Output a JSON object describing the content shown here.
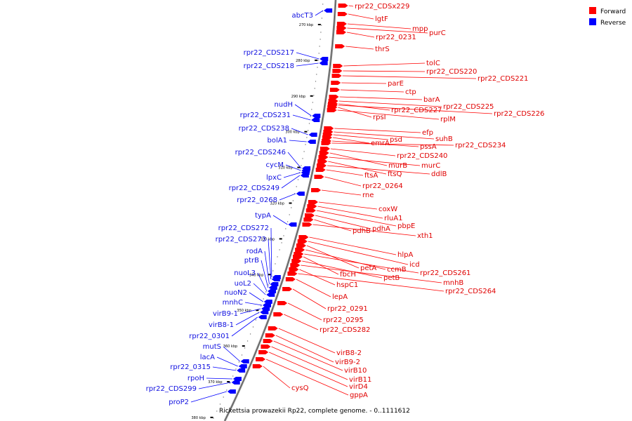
{
  "colors": {
    "forward": "#ff0000",
    "reverse": "#0000ff",
    "backbone": "#999999"
  },
  "legend": [
    {
      "label": "Forward",
      "strand": "forward",
      "color": "#ff0000"
    },
    {
      "label": "Reverse",
      "strand": "reverse",
      "color": "#0000ff"
    }
  ],
  "caption": "Rickettsia prowazekii Rp22, complete genome. - 0..1111612",
  "ticks": [
    {
      "label": "270 kbp",
      "kbp": 270
    },
    {
      "label": "280 kbp",
      "kbp": 280
    },
    {
      "label": "290 kbp",
      "kbp": 290
    },
    {
      "label": "300 kbp",
      "kbp": 300
    },
    {
      "label": "310 kbp",
      "kbp": 310
    },
    {
      "label": "320 kbp",
      "kbp": 320
    },
    {
      "label": "330 kbp",
      "kbp": 330
    },
    {
      "label": "340 kbp",
      "kbp": 340
    },
    {
      "label": "350 kbp",
      "kbp": 350
    },
    {
      "label": "360 kbp",
      "kbp": 360
    },
    {
      "label": "370 kbp",
      "kbp": 370
    },
    {
      "label": "380 kbp",
      "kbp": 380
    }
  ],
  "forward_genes": [
    {
      "name": "rpr22_CDSx229"
    },
    {
      "name": "lgtF"
    },
    {
      "name": "mpp"
    },
    {
      "name": "purC"
    },
    {
      "name": "rpr22_0231"
    },
    {
      "name": "thrS"
    },
    {
      "name": "tolC"
    },
    {
      "name": "rpr22_CDS220"
    },
    {
      "name": "rpr22_CDS221"
    },
    {
      "name": "parE"
    },
    {
      "name": "ctp"
    },
    {
      "name": "barA"
    },
    {
      "name": "rpr22_CDS225"
    },
    {
      "name": "rpr22_CDS227"
    },
    {
      "name": "rpr22_CDS226"
    },
    {
      "name": "rpsI"
    },
    {
      "name": "rplM"
    },
    {
      "name": "efp"
    },
    {
      "name": "suhB"
    },
    {
      "name": "psd"
    },
    {
      "name": "emrA"
    },
    {
      "name": "pssA"
    },
    {
      "name": "rpr22_CDS234"
    },
    {
      "name": "rpr22_CDS240"
    },
    {
      "name": "murB"
    },
    {
      "name": "murC"
    },
    {
      "name": "ftsQ"
    },
    {
      "name": "ddlB"
    },
    {
      "name": "ftsA"
    },
    {
      "name": "rpr22_0264"
    },
    {
      "name": "rne"
    },
    {
      "name": "coxW"
    },
    {
      "name": "rluA1"
    },
    {
      "name": "pbpE"
    },
    {
      "name": "pdhA"
    },
    {
      "name": "pdhB"
    },
    {
      "name": "xth1"
    },
    {
      "name": "hlpA"
    },
    {
      "name": "icd"
    },
    {
      "name": "petA"
    },
    {
      "name": "ccmB"
    },
    {
      "name": "rpr22_CDS261"
    },
    {
      "name": "fbcH"
    },
    {
      "name": "petB"
    },
    {
      "name": "mnhB"
    },
    {
      "name": "hspC1"
    },
    {
      "name": "rpr22_CDS264"
    },
    {
      "name": "lepA"
    },
    {
      "name": "rpr22_0291"
    },
    {
      "name": "rpr22_0295"
    },
    {
      "name": "rpr22_CDS282"
    },
    {
      "name": "virB8-2"
    },
    {
      "name": "virB9-2"
    },
    {
      "name": "virB10"
    },
    {
      "name": "virB11"
    },
    {
      "name": "virD4"
    },
    {
      "name": "cysQ"
    },
    {
      "name": "gppA"
    }
  ],
  "reverse_genes": [
    {
      "name": "abcT3"
    },
    {
      "name": "rpr22_CDS217"
    },
    {
      "name": "rpr22_CDS218"
    },
    {
      "name": "nudH"
    },
    {
      "name": "rpr22_CDS231"
    },
    {
      "name": "rpr22_CDS238"
    },
    {
      "name": "bolA1"
    },
    {
      "name": "rpr22_CDS246"
    },
    {
      "name": "cycM"
    },
    {
      "name": "lpxC"
    },
    {
      "name": "rpr22_CDS249"
    },
    {
      "name": "rpr22_0268"
    },
    {
      "name": "typA"
    },
    {
      "name": "rpr22_CDS272"
    },
    {
      "name": "rpr22_CDS273"
    },
    {
      "name": "rodA"
    },
    {
      "name": "ptrB"
    },
    {
      "name": "nuoL3"
    },
    {
      "name": "uoL2"
    },
    {
      "name": "nuoN2"
    },
    {
      "name": "mnhC"
    },
    {
      "name": "virB9-1"
    },
    {
      "name": "virB8-1"
    },
    {
      "name": "rpr22_0301"
    },
    {
      "name": "mutS"
    },
    {
      "name": "lacA"
    },
    {
      "name": "rpr22_0315"
    },
    {
      "name": "rpoH"
    },
    {
      "name": "rpr22_CDS299"
    },
    {
      "name": "proP2"
    }
  ]
}
